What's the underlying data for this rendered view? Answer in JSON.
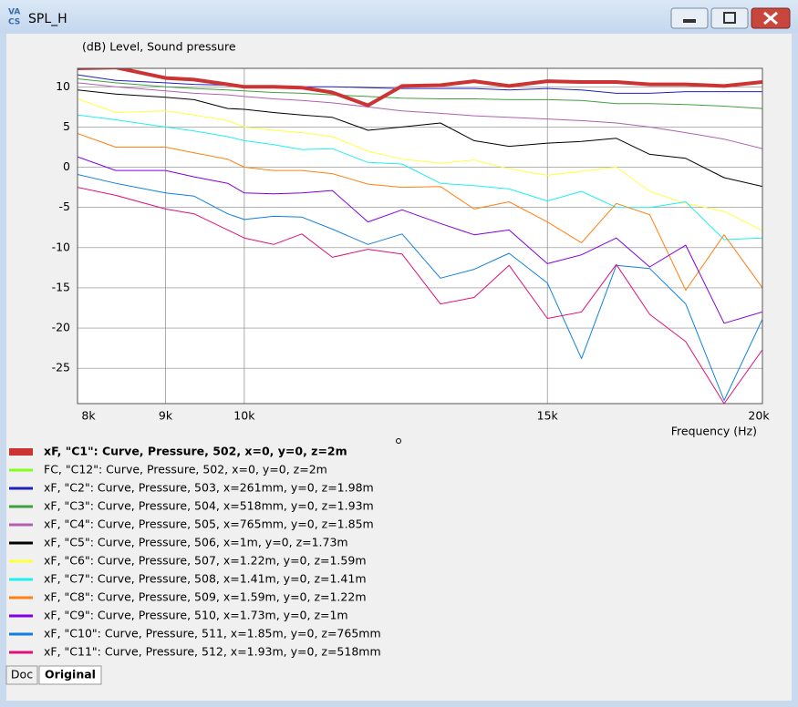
{
  "window": {
    "title": "SPL_H",
    "tabs": [
      "Doc",
      "Original"
    ]
  },
  "chart_data": {
    "type": "line",
    "y_label": "(dB)  Level, Sound pressure",
    "x_label": "Frequency  (Hz)",
    "x_scale": "log",
    "grid": true,
    "xlim": [
      8000,
      20000
    ],
    "xticks": [
      {
        "value": 8000,
        "label": "8k"
      },
      {
        "value": 9000,
        "label": "9k"
      },
      {
        "value": 10000,
        "label": "10k"
      },
      {
        "value": 15000,
        "label": "15k"
      },
      {
        "value": 20000,
        "label": "20k"
      }
    ],
    "ylim": [
      -29.4,
      12.3
    ],
    "yticks": [
      10,
      5,
      0,
      -5,
      -10,
      -15,
      -20,
      -25
    ],
    "x": [
      8000,
      8420,
      9000,
      9350,
      9780,
      10000,
      10400,
      10800,
      11250,
      11800,
      12350,
      13000,
      13600,
      14250,
      15000,
      15700,
      16450,
      17200,
      18050,
      19000,
      20000
    ],
    "series": [
      {
        "name": "xF, \"C1\": Curve, Pressure, 502, x=0, y=0, z=2m",
        "color": "#cc3333",
        "line_width": 4,
        "values": [
          12.3,
          12.4,
          11.1,
          10.9,
          10.3,
          10,
          10,
          9.9,
          9.3,
          7.7,
          10.1,
          10.2,
          10.7,
          10.1,
          10.7,
          10.6,
          10.6,
          10.3,
          10.3,
          10.1,
          10.6
        ]
      },
      {
        "name": "FC, \"C12\": Curve, Pressure, 502, x=0, y=0, z=2m",
        "color": "#80ff20",
        "line_width": 1,
        "values": [
          null,
          null,
          null,
          null,
          null,
          null,
          null,
          null,
          null,
          null,
          null,
          null,
          null,
          null,
          null,
          null,
          null,
          null,
          null,
          null,
          null
        ]
      },
      {
        "name": "xF, \"C2\": Curve, Pressure, 503, x=261mm, y=0, z=1.98m",
        "color": "#2020c0",
        "line_width": 1,
        "values": [
          11.5,
          10.8,
          10.5,
          10.3,
          10.2,
          10,
          10,
          10,
          10,
          9.9,
          9.8,
          9.8,
          9.8,
          9.6,
          9.8,
          9.6,
          9.2,
          9.2,
          9.4,
          9.4,
          9.4
        ]
      },
      {
        "name": "xF, \"C3\": Curve, Pressure, 504, x=518mm, y=0, z=1.93m",
        "color": "#40a040",
        "line_width": 1,
        "values": [
          11,
          10.5,
          10,
          9.8,
          9.6,
          9.5,
          9.3,
          9.2,
          9,
          8.8,
          8.6,
          8.5,
          8.5,
          8.4,
          8.4,
          8.3,
          7.9,
          7.9,
          7.8,
          7.6,
          7.3
        ]
      },
      {
        "name": "xF, \"C4\": Curve, Pressure, 505, x=765mm, y=0, z=1.85m",
        "color": "#b060b0",
        "line_width": 1,
        "values": [
          10.5,
          10,
          9.5,
          9.2,
          9,
          8.8,
          8.5,
          8.3,
          8,
          7.5,
          7,
          6.7,
          6.4,
          6.2,
          6,
          5.8,
          5.5,
          5,
          4.3,
          3.5,
          2.3
        ]
      },
      {
        "name": "xF, \"C5\": Curve, Pressure, 506, x=1m, y=0, z=1.73m",
        "color": "#000000",
        "line_width": 1,
        "values": [
          9.6,
          9.1,
          8.7,
          8.4,
          7.3,
          7.2,
          6.8,
          6.5,
          6.2,
          4.6,
          5,
          5.5,
          3.3,
          2.6,
          3,
          3.2,
          3.6,
          1.6,
          1.1,
          -1.3,
          -2.4
        ]
      },
      {
        "name": "xF, \"C6\": Curve, Pressure, 507, x=1.22m, y=0, z=1.59m",
        "color": "#ffff40",
        "line_width": 1,
        "values": [
          8.5,
          6.8,
          7,
          6.5,
          5.8,
          5,
          4.6,
          4.3,
          3.8,
          2,
          1,
          0.5,
          0.9,
          -0.2,
          -1,
          -0.5,
          0,
          -3,
          -4.5,
          -5.5,
          -7.9
        ]
      },
      {
        "name": "xF, \"C7\": Curve, Pressure, 508, x=1.41m, y=0, z=1.41m",
        "color": "#20f0f0",
        "line_width": 1,
        "values": [
          6.5,
          5.9,
          5,
          4.5,
          3.8,
          3.3,
          2.8,
          2.2,
          2.3,
          0.6,
          0.4,
          -2,
          -2.3,
          -2.7,
          -4.2,
          -3,
          -5,
          -5,
          -4.3,
          -9,
          -8.8
        ]
      },
      {
        "name": "xF, \"C8\": Curve, Pressure, 509, x=1.59m, y=0, z=1.22m",
        "color": "#ff8010",
        "line_width": 1,
        "values": [
          4.2,
          2.5,
          2.5,
          1.8,
          1,
          0,
          -0.4,
          -0.4,
          -0.8,
          -2.1,
          -2.5,
          -2.4,
          -5.2,
          -4.3,
          -6.8,
          -9.4,
          -4.5,
          -5.9,
          -15.3,
          -8.4,
          -15
        ]
      },
      {
        "name": "xF, \"C9\": Curve, Pressure, 510, x=1.73m, y=0, z=1m",
        "color": "#8000e0",
        "line_width": 1,
        "values": [
          1.3,
          -0.4,
          -0.4,
          -1.2,
          -2,
          -3.2,
          -3.3,
          -3.2,
          -2.9,
          -6.8,
          -5.3,
          -7,
          -8.4,
          -7.8,
          -12,
          -10.9,
          -8.8,
          -12.4,
          -9.7,
          -19.4,
          -18
        ]
      },
      {
        "name": "xF, \"C10\": Curve, Pressure, 511, x=1.85m, y=0, z=765mm",
        "color": "#1080e0",
        "line_width": 1,
        "values": [
          -0.9,
          -2,
          -3.2,
          -3.6,
          -5.8,
          -6.5,
          -6.1,
          -6.2,
          -7.7,
          -9.6,
          -8.3,
          -13.8,
          -12.7,
          -10.7,
          -14.4,
          -23.8,
          -12.2,
          -12.6,
          -17,
          -29,
          -18.9
        ]
      },
      {
        "name": "xF, \"C11\": Curve, Pressure, 512, x=1.93m, y=0, z=518mm",
        "color": "#e0107a",
        "line_width": 1,
        "values": [
          -2.5,
          -3.5,
          -5.2,
          -5.8,
          -7.8,
          -8.8,
          -9.6,
          -8.3,
          -11.2,
          -10.2,
          -10.8,
          -17,
          -16.2,
          -12.2,
          -18.8,
          -18,
          -12.1,
          -18.3,
          -21.7,
          -29.4,
          -22.7
        ]
      }
    ]
  }
}
